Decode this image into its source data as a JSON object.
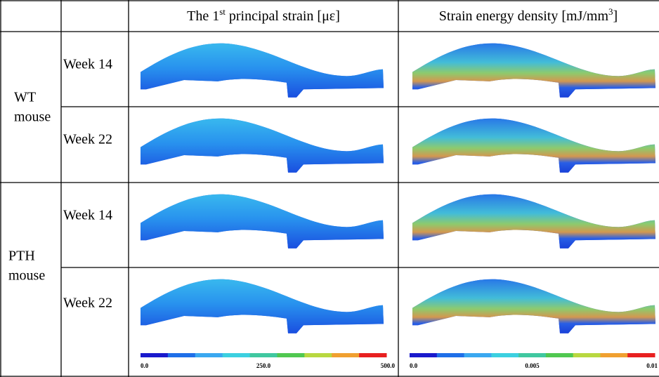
{
  "header": {
    "columns": [
      {
        "prefix": "The 1",
        "sup": "st",
        "suffix": " principal strain [με]"
      },
      {
        "prefix": "Strain energy density [mJ/mm",
        "sup": "3",
        "suffix": "]"
      }
    ]
  },
  "groups": [
    {
      "label_lines": [
        "WT",
        "mouse"
      ],
      "rows": [
        "Week 14",
        "Week 22"
      ]
    },
    {
      "label_lines": [
        "PTH",
        "mouse"
      ],
      "rows": [
        "Week 14",
        "Week 22"
      ]
    }
  ],
  "colorbars": [
    {
      "labels": [
        "0.0",
        "250.0",
        "500.0"
      ]
    },
    {
      "labels": [
        "0.0",
        "0.005",
        "0.01"
      ]
    }
  ]
}
